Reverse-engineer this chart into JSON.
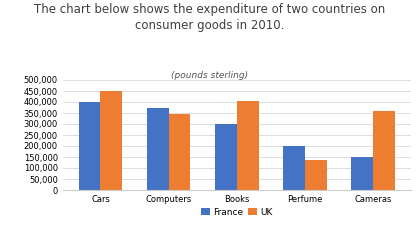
{
  "title_line1": "The chart below shows the expenditure of two countries on",
  "title_line2": "consumer goods in 2010.",
  "subtitle": "(pounds sterling)",
  "categories": [
    "Cars",
    "Computers",
    "Books",
    "Perfume",
    "Cameras"
  ],
  "france": [
    400000,
    375000,
    300000,
    200000,
    150000
  ],
  "uk": [
    450000,
    345000,
    405000,
    135000,
    360000
  ],
  "france_color": "#4472c4",
  "uk_color": "#ed7d31",
  "ylim": [
    0,
    500000
  ],
  "yticks": [
    0,
    50000,
    100000,
    150000,
    200000,
    250000,
    300000,
    350000,
    400000,
    450000,
    500000
  ],
  "legend_labels": [
    "France",
    "UK"
  ],
  "background_color": "#ffffff",
  "title_fontsize": 8.5,
  "subtitle_fontsize": 6.5,
  "tick_fontsize": 6,
  "legend_fontsize": 6.5,
  "bar_width": 0.32
}
